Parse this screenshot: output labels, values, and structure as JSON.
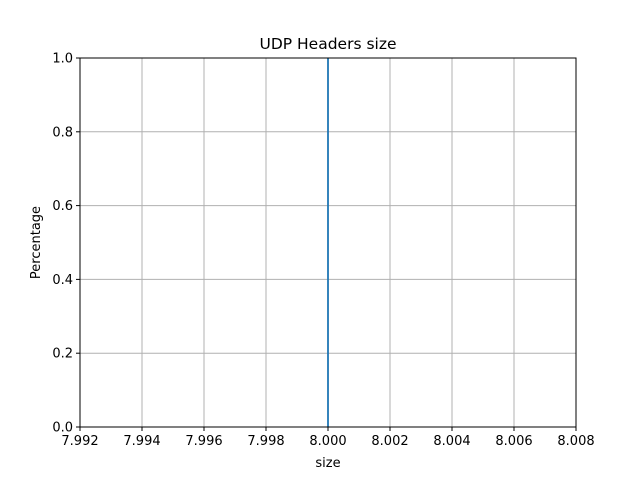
{
  "chart_data": {
    "type": "line",
    "title": "UDP Headers size",
    "xlabel": "size",
    "ylabel": "Percentage",
    "xlim": [
      7.992,
      8.008
    ],
    "ylim": [
      0.0,
      1.0
    ],
    "xticks": [
      "7.992",
      "7.994",
      "7.996",
      "7.998",
      "8.000",
      "8.002",
      "8.004",
      "8.006",
      "8.008"
    ],
    "yticks": [
      "0.0",
      "0.2",
      "0.4",
      "0.6",
      "0.8",
      "1.0"
    ],
    "grid": true,
    "series": [
      {
        "x": [
          8.0,
          8.0
        ],
        "y": [
          0.0,
          1.0
        ],
        "color": "#1f77b4"
      }
    ]
  }
}
